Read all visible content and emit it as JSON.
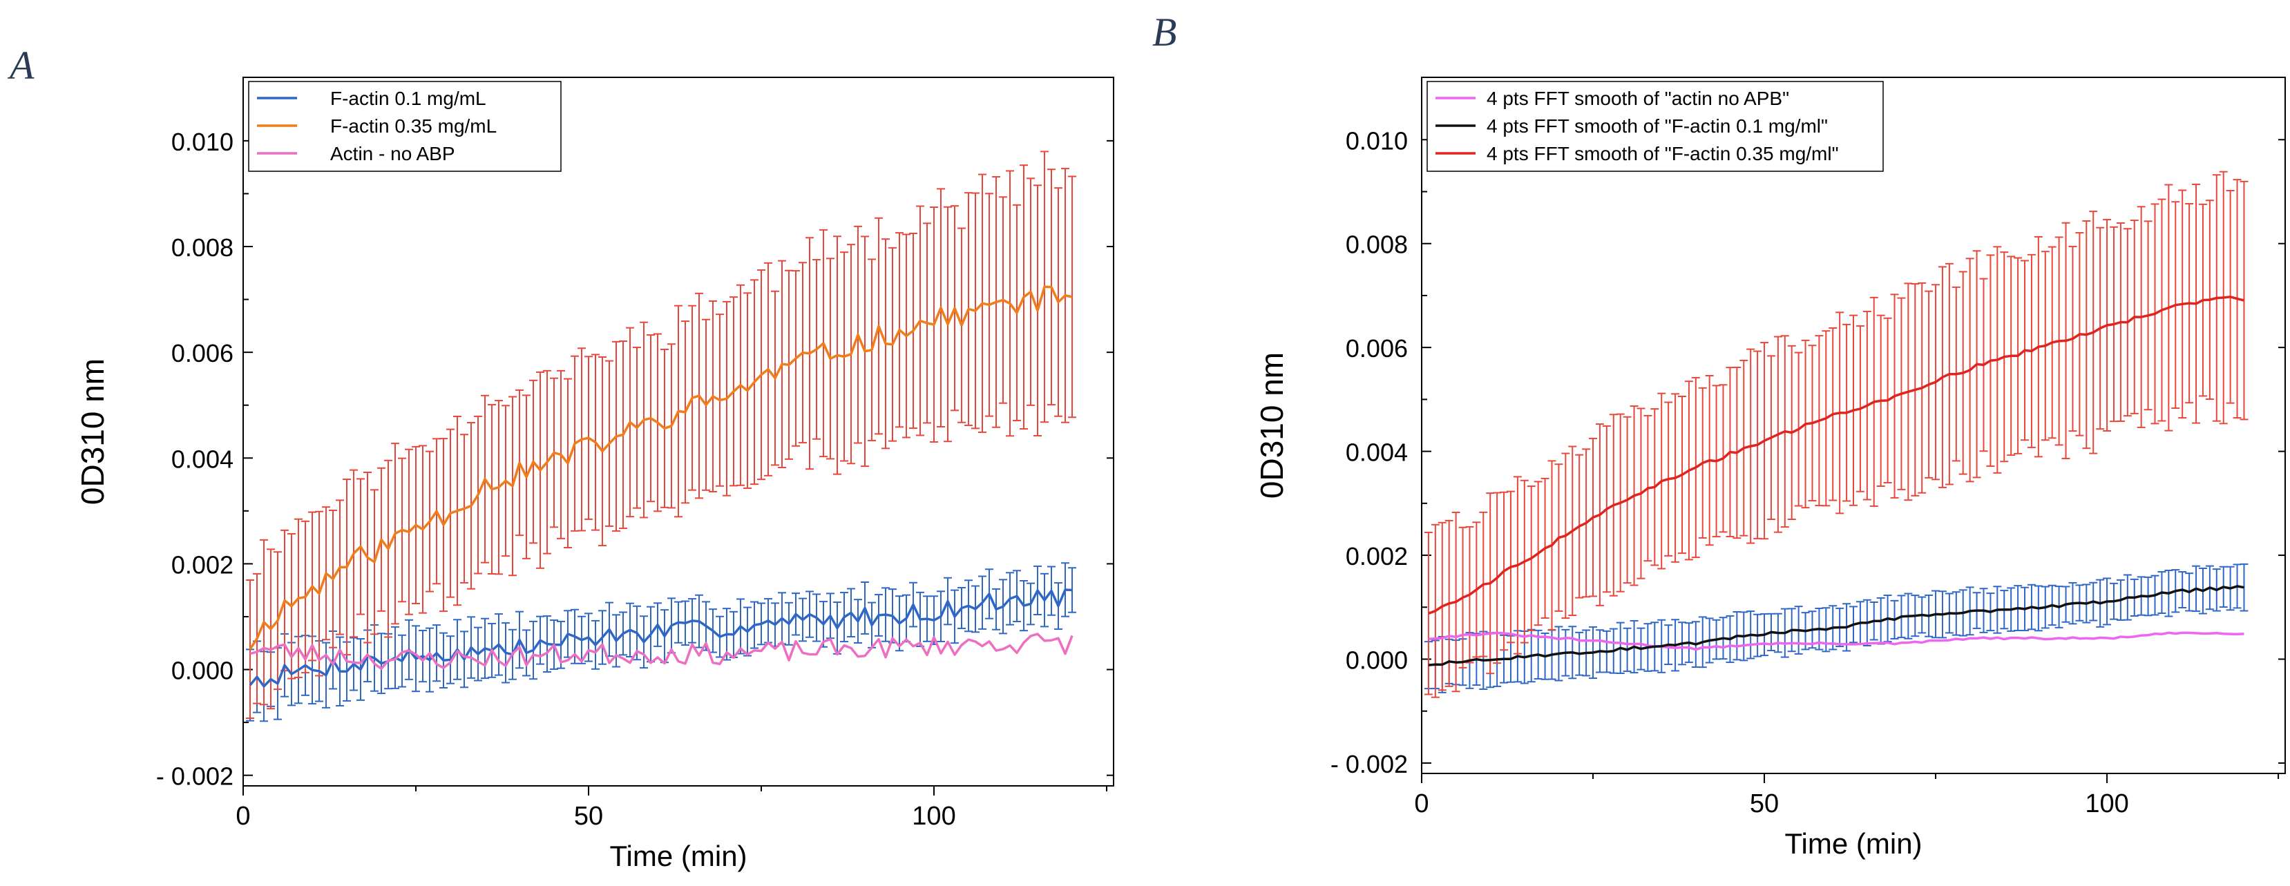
{
  "figure": {
    "panel_a_letter": "A",
    "panel_b_letter": "B"
  },
  "chart_data": [
    {
      "id": "A",
      "type": "line",
      "title": "",
      "xlabel": "Time (min)",
      "ylabel": "0D310 nm",
      "xlim": [
        0,
        126
      ],
      "ylim": [
        -0.0022,
        0.0112
      ],
      "xticks": [
        0,
        50,
        100
      ],
      "xtick_labels": [
        "0",
        "50",
        "100"
      ],
      "yticks": [
        -0.002,
        0.0,
        0.002,
        0.004,
        0.006,
        0.008,
        0.01
      ],
      "ytick_labels": [
        "- 0.002",
        "0.000",
        "0.002",
        "0.004",
        "0.006",
        "0.008",
        "0.010"
      ],
      "grid": false,
      "legend_position": "top-left",
      "legend": [
        "F-actin 0.1 mg/mL",
        "F-actin 0.35 mg/mL",
        "Actin - no ABP"
      ],
      "series": [
        {
          "name": "F-actin 0.1 mg/mL",
          "color": "#2f67c7",
          "errorbar_color": "#2f67c7",
          "x_start": 1,
          "x_step": 1,
          "n": 120,
          "anchors": [
            [
              1,
              -0.0002
            ],
            [
              10,
              0.0
            ],
            [
              20,
              0.0002
            ],
            [
              30,
              0.0003
            ],
            [
              40,
              0.0004
            ],
            [
              50,
              0.0006
            ],
            [
              60,
              0.0007
            ],
            [
              70,
              0.0008
            ],
            [
              80,
              0.0009
            ],
            [
              90,
              0.001
            ],
            [
              100,
              0.0011
            ],
            [
              110,
              0.0013
            ],
            [
              120,
              0.0014
            ]
          ],
          "noise": 0.00018,
          "error_anchors": [
            [
              1,
              0.0006
            ],
            [
              60,
              0.00045
            ],
            [
              120,
              0.00045
            ]
          ],
          "seed": 7
        },
        {
          "name": "F-actin 0.35 mg/mL",
          "color": "#ef7d1a",
          "errorbar_color": "#e8483b",
          "x_start": 1,
          "x_step": 1,
          "n": 120,
          "anchors": [
            [
              1,
              0.0005
            ],
            [
              5,
              0.0011
            ],
            [
              10,
              0.0015
            ],
            [
              15,
              0.002
            ],
            [
              20,
              0.0023
            ],
            [
              25,
              0.0027
            ],
            [
              30,
              0.003
            ],
            [
              35,
              0.0035
            ],
            [
              40,
              0.0037
            ],
            [
              50,
              0.0042
            ],
            [
              60,
              0.0047
            ],
            [
              70,
              0.0052
            ],
            [
              80,
              0.0058
            ],
            [
              90,
              0.0062
            ],
            [
              100,
              0.0066
            ],
            [
              110,
              0.0069
            ],
            [
              120,
              0.0071
            ]
          ],
          "noise": 0.00022,
          "error_anchors": [
            [
              1,
              0.0014
            ],
            [
              40,
              0.0016
            ],
            [
              80,
              0.0019
            ],
            [
              120,
              0.0023
            ]
          ],
          "seed": 11
        },
        {
          "name": "Actin - no ABP",
          "color": "#ec6fc2",
          "errorbar_color": null,
          "x_start": 1,
          "x_step": 1,
          "n": 120,
          "anchors": [
            [
              1,
              0.0004
            ],
            [
              10,
              0.0003
            ],
            [
              20,
              0.0002
            ],
            [
              30,
              0.0002
            ],
            [
              50,
              0.0003
            ],
            [
              70,
              0.0003
            ],
            [
              90,
              0.0004
            ],
            [
              110,
              0.0005
            ],
            [
              120,
              0.0005
            ]
          ],
          "noise": 0.0002,
          "error_anchors": [],
          "seed": 23
        }
      ]
    },
    {
      "id": "B",
      "type": "line",
      "title": "",
      "xlabel": "Time (min)",
      "ylabel": "0D310 nm",
      "xlim": [
        0,
        126
      ],
      "ylim": [
        -0.0022,
        0.0112
      ],
      "xticks": [
        0,
        50,
        100
      ],
      "xtick_labels": [
        "0",
        "50",
        "100"
      ],
      "yticks": [
        -0.002,
        0.0,
        0.002,
        0.004,
        0.006,
        0.008,
        0.01
      ],
      "ytick_labels": [
        "- 0.002",
        "0.000",
        "0.002",
        "0.004",
        "0.006",
        "0.008",
        "0.010"
      ],
      "grid": false,
      "legend_position": "top-left",
      "legend": [
        "4 pts FFT smooth of \"actin no APB\"",
        "4 pts FFT smooth of \"F-actin 0.1 mg/ml\"",
        "4 pts FFT smooth of \"F-actin 0.35 mg/ml\""
      ],
      "series": [
        {
          "name": "4 pts FFT smooth of \"actin no APB\"",
          "color": "#ee66ee",
          "errorbar_color": null,
          "x_start": 1,
          "x_step": 1,
          "n": 120,
          "anchors": [
            [
              1,
              0.0004
            ],
            [
              10,
              0.0005
            ],
            [
              20,
              0.0004
            ],
            [
              30,
              0.0003
            ],
            [
              40,
              0.0002
            ],
            [
              50,
              0.0003
            ],
            [
              60,
              0.0003
            ],
            [
              70,
              0.0003
            ],
            [
              80,
              0.0004
            ],
            [
              90,
              0.0004
            ],
            [
              100,
              0.0004
            ],
            [
              110,
              0.0005
            ],
            [
              120,
              0.0005
            ]
          ],
          "noise": 2e-05,
          "error_anchors": [],
          "seed": 31
        },
        {
          "name": "4 pts FFT smooth of \"F-actin 0.1 mg/ml\"",
          "color": "#111111",
          "errorbar_color": "#2f67c7",
          "x_start": 1,
          "x_step": 1,
          "n": 120,
          "anchors": [
            [
              1,
              -0.0001
            ],
            [
              10,
              0.0
            ],
            [
              20,
              0.0001
            ],
            [
              30,
              0.0002
            ],
            [
              40,
              0.0003
            ],
            [
              50,
              0.0005
            ],
            [
              60,
              0.0006
            ],
            [
              70,
              0.0008
            ],
            [
              80,
              0.0009
            ],
            [
              90,
              0.001
            ],
            [
              100,
              0.0011
            ],
            [
              110,
              0.0013
            ],
            [
              120,
              0.0014
            ]
          ],
          "noise": 3e-05,
          "error_anchors": [
            [
              1,
              0.0005
            ],
            [
              60,
              0.0004
            ],
            [
              120,
              0.0004
            ]
          ],
          "seed": 43
        },
        {
          "name": "4 pts FFT smooth of \"F-actin 0.35 mg/ml\"",
          "color": "#e0241f",
          "errorbar_color": "#e8483b",
          "x_start": 1,
          "x_step": 1,
          "n": 120,
          "anchors": [
            [
              1,
              0.0009
            ],
            [
              5,
              0.0011
            ],
            [
              10,
              0.0015
            ],
            [
              15,
              0.0019
            ],
            [
              20,
              0.0023
            ],
            [
              30,
              0.0031
            ],
            [
              40,
              0.0037
            ],
            [
              50,
              0.0042
            ],
            [
              60,
              0.0047
            ],
            [
              70,
              0.0051
            ],
            [
              80,
              0.0056
            ],
            [
              90,
              0.006
            ],
            [
              100,
              0.0064
            ],
            [
              110,
              0.0068
            ],
            [
              118,
              0.007
            ],
            [
              120,
              0.0069
            ]
          ],
          "noise": 4e-05,
          "error_anchors": [
            [
              1,
              0.0015
            ],
            [
              40,
              0.0016
            ],
            [
              80,
              0.0019
            ],
            [
              120,
              0.0022
            ]
          ],
          "seed": 59
        }
      ]
    }
  ]
}
